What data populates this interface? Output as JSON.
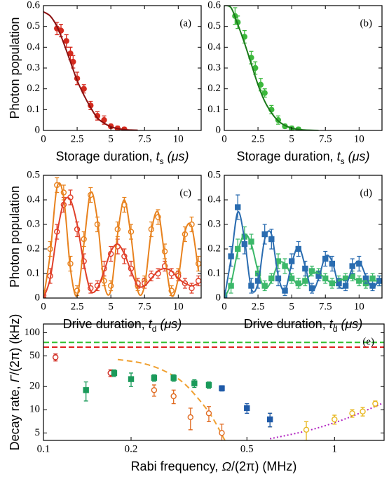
{
  "chart_data": [
    {
      "type": "scatter",
      "label": "(a)",
      "ylabel": "Photon population",
      "xlabel": [
        "Storage duration, ",
        "t",
        "s",
        " (μs)"
      ],
      "xlim": [
        0,
        11.7
      ],
      "ylim": [
        0,
        0.6
      ],
      "xticks": [
        0,
        2.5,
        5,
        7.5,
        10
      ],
      "yticks": [
        0,
        0.1,
        0.2,
        0.3,
        0.4,
        0.5,
        0.6
      ],
      "series": [
        {
          "color": "#d42a1e",
          "marker": "circle",
          "x": [
            1.0,
            1.3,
            1.7,
            2.0,
            2.2,
            2.5,
            3.0,
            3.5,
            4.0,
            4.5,
            5.0,
            5.5,
            6.0
          ],
          "values": [
            0.49,
            0.48,
            0.43,
            0.37,
            0.33,
            0.25,
            0.2,
            0.12,
            0.07,
            0.05,
            0.02,
            0.01,
            0.005
          ],
          "errors": [
            0.03,
            0.03,
            0.03,
            0.03,
            0.03,
            0.03,
            0.02,
            0.02,
            0.02,
            0.02,
            0.01,
            0.01,
            0.01
          ]
        },
        {
          "color": "#8b1010",
          "line": "solid",
          "x": [
            0,
            0.5,
            1,
            1.5,
            2,
            2.5,
            3,
            3.5,
            4,
            4.5,
            5,
            5.5,
            6,
            6.5,
            7
          ],
          "values": [
            0.57,
            0.55,
            0.5,
            0.42,
            0.33,
            0.24,
            0.17,
            0.11,
            0.06,
            0.035,
            0.018,
            0.009,
            0.004,
            0.002,
            0.001
          ]
        }
      ]
    },
    {
      "type": "scatter",
      "label": "(b)",
      "xlabel": [
        "Storage duration, ",
        "t",
        "s",
        " (μs)"
      ],
      "xlim": [
        0,
        11.7
      ],
      "ylim": [
        0,
        0.6
      ],
      "xticks": [
        0,
        2.5,
        5,
        7.5,
        10
      ],
      "yticks": [
        0,
        0.1,
        0.2,
        0.3,
        0.4,
        0.5,
        0.6
      ],
      "series": [
        {
          "color": "#3cb83c",
          "marker": "circle",
          "x": [
            0.8,
            1.0,
            1.5,
            2.0,
            2.3,
            2.7,
            3.0,
            3.5,
            4.0,
            4.5,
            5.0,
            5.5
          ],
          "values": [
            0.55,
            0.52,
            0.45,
            0.35,
            0.3,
            0.22,
            0.18,
            0.1,
            0.05,
            0.02,
            0.01,
            0.005
          ],
          "errors": [
            0.04,
            0.03,
            0.03,
            0.03,
            0.03,
            0.03,
            0.02,
            0.02,
            0.02,
            0.01,
            0.01,
            0.01
          ]
        },
        {
          "color": "#1a7a1a",
          "line": "solid",
          "x": [
            0,
            0.5,
            1,
            1.5,
            2,
            2.5,
            3,
            3.5,
            4,
            4.5,
            5,
            5.5,
            6,
            6.5,
            7
          ],
          "values": [
            0.6,
            0.59,
            0.51,
            0.42,
            0.32,
            0.22,
            0.14,
            0.085,
            0.046,
            0.024,
            0.011,
            0.005,
            0.002,
            0.001,
            0
          ]
        }
      ]
    },
    {
      "type": "scatter",
      "label": "(c)",
      "ylabel": "Photon population",
      "xlabel": [
        "Drive duration,  ",
        "t",
        "d",
        " (μs)"
      ],
      "xlim": [
        0,
        11.7
      ],
      "ylim": [
        0,
        0.5
      ],
      "xticks": [
        0,
        2.5,
        5,
        7.5,
        10
      ],
      "yticks": [
        0,
        0.1,
        0.2,
        0.3,
        0.4,
        0.5
      ],
      "series": [
        {
          "color": "#e8821e",
          "marker": "circle-open",
          "x": [
            0,
            0.5,
            1,
            1.5,
            2,
            2.5,
            3,
            3.5,
            4,
            4.5,
            5,
            5.5,
            6,
            6.5,
            7,
            7.5,
            8,
            8.5,
            9,
            9.5,
            10,
            10.5,
            11,
            11.5
          ],
          "values": [
            0,
            0.2,
            0.46,
            0.43,
            0.14,
            0.03,
            0.24,
            0.42,
            0.3,
            0.07,
            0.05,
            0.28,
            0.38,
            0.27,
            0.05,
            0.07,
            0.28,
            0.33,
            0.19,
            0.03,
            0.1,
            0.26,
            0.3,
            0.14
          ],
          "errors": [
            0.02,
            0.03,
            0.03,
            0.03,
            0.03,
            0.02,
            0.03,
            0.03,
            0.03,
            0.02,
            0.02,
            0.03,
            0.03,
            0.03,
            0.02,
            0.02,
            0.03,
            0.03,
            0.03,
            0.02,
            0.02,
            0.03,
            0.03,
            0.03
          ]
        },
        {
          "color": "#e0402a",
          "marker": "circle-open",
          "x": [
            0,
            0.5,
            1,
            1.5,
            2,
            2.5,
            3,
            3.5,
            4,
            4.5,
            5,
            5.5,
            6,
            6.5,
            7,
            7.5,
            8,
            8.5,
            9,
            9.5,
            10,
            10.5,
            11,
            11.5
          ],
          "values": [
            0.01,
            0.09,
            0.27,
            0.38,
            0.41,
            0.28,
            0.15,
            0.04,
            0.05,
            0.12,
            0.18,
            0.21,
            0.17,
            0.12,
            0.06,
            0.06,
            0.09,
            0.1,
            0.13,
            0.1,
            0.09,
            0.06,
            0.04,
            0.07
          ],
          "errors": [
            0.02,
            0.03,
            0.03,
            0.03,
            0.03,
            0.03,
            0.03,
            0.02,
            0.02,
            0.03,
            0.03,
            0.03,
            0.03,
            0.03,
            0.02,
            0.02,
            0.02,
            0.02,
            0.02,
            0.02,
            0.02,
            0.02,
            0.02,
            0.02
          ]
        },
        {
          "color": "#e8821e",
          "line": "solid",
          "x": [
            0,
            0.5,
            1,
            1.5,
            2,
            2.5,
            3,
            3.5,
            4,
            4.5,
            5,
            5.5,
            6,
            6.5,
            7,
            7.5,
            8,
            8.5,
            9,
            9.5,
            10,
            10.5,
            11,
            11.5
          ],
          "values": [
            0,
            0.18,
            0.45,
            0.41,
            0.12,
            0.01,
            0.22,
            0.43,
            0.32,
            0.06,
            0.03,
            0.26,
            0.4,
            0.25,
            0.03,
            0.05,
            0.27,
            0.35,
            0.17,
            0.01,
            0.08,
            0.27,
            0.29,
            0.11
          ]
        },
        {
          "color": "#e0402a",
          "line": "solid",
          "x": [
            0,
            0.5,
            1,
            1.5,
            2,
            2.5,
            3,
            3.5,
            4,
            4.5,
            5,
            5.5,
            6,
            6.5,
            7,
            7.5,
            8,
            8.5,
            9,
            9.5,
            10,
            10.5,
            11,
            11.5
          ],
          "values": [
            0,
            0.08,
            0.26,
            0.39,
            0.4,
            0.3,
            0.14,
            0.03,
            0.04,
            0.11,
            0.19,
            0.22,
            0.18,
            0.11,
            0.05,
            0.05,
            0.08,
            0.11,
            0.12,
            0.11,
            0.08,
            0.06,
            0.05,
            0.06
          ]
        }
      ]
    },
    {
      "type": "scatter",
      "label": "(d)",
      "xlabel": [
        "Drive duration,  ",
        "t",
        "d",
        " (μs)"
      ],
      "xlim": [
        0,
        11.7
      ],
      "ylim": [
        0,
        0.5
      ],
      "xticks": [
        0,
        2.5,
        5,
        7.5,
        10
      ],
      "yticks": [
        0,
        0.1,
        0.2,
        0.3,
        0.4,
        0.5
      ],
      "series": [
        {
          "color": "#3cb86a",
          "marker": "square",
          "x": [
            0,
            0.5,
            1,
            1.5,
            2,
            2.5,
            3,
            3.5,
            4,
            4.5,
            5,
            5.5,
            6,
            6.5,
            7,
            7.5,
            8,
            8.5,
            9,
            9.5,
            10,
            10.5,
            11,
            11.5
          ],
          "values": [
            0.01,
            0.05,
            0.2,
            0.25,
            0.23,
            0.1,
            0.05,
            0.08,
            0.15,
            0.13,
            0.08,
            0.06,
            0.07,
            0.11,
            0.1,
            0.08,
            0.06,
            0.07,
            0.08,
            0.09,
            0.07,
            0.06,
            0.08,
            0.07
          ],
          "errors": [
            0.02,
            0.03,
            0.04,
            0.04,
            0.03,
            0.03,
            0.02,
            0.02,
            0.03,
            0.03,
            0.02,
            0.02,
            0.02,
            0.02,
            0.02,
            0.02,
            0.02,
            0.02,
            0.02,
            0.02,
            0.02,
            0.02,
            0.02,
            0.02
          ]
        },
        {
          "color": "#2a6cb0",
          "marker": "square",
          "x": [
            0,
            0.5,
            1,
            1.5,
            2,
            2.5,
            3,
            3.5,
            4,
            4.5,
            5,
            5.5,
            6,
            6.5,
            7,
            7.5,
            8,
            8.5,
            9,
            9.5,
            10,
            10.5,
            11,
            11.5
          ],
          "values": [
            0.01,
            0.17,
            0.37,
            0.22,
            0.05,
            0.07,
            0.26,
            0.24,
            0.08,
            0.03,
            0.15,
            0.2,
            0.12,
            0.04,
            0.09,
            0.16,
            0.14,
            0.06,
            0.05,
            0.13,
            0.14,
            0.08,
            0.05,
            0.07
          ],
          "errors": [
            0.02,
            0.04,
            0.05,
            0.04,
            0.03,
            0.03,
            0.04,
            0.04,
            0.03,
            0.02,
            0.03,
            0.03,
            0.03,
            0.02,
            0.02,
            0.03,
            0.03,
            0.02,
            0.02,
            0.03,
            0.03,
            0.02,
            0.02,
            0.02
          ]
        },
        {
          "color": "#3cb86a",
          "line": "solid",
          "x": [
            0,
            0.5,
            1,
            1.5,
            2,
            2.5,
            3,
            3.5,
            4,
            4.5,
            5,
            5.5,
            6,
            6.5,
            7,
            7.5,
            8,
            8.5,
            9,
            9.5,
            10,
            10.5,
            11,
            11.5
          ],
          "values": [
            0,
            0.06,
            0.19,
            0.26,
            0.22,
            0.11,
            0.04,
            0.07,
            0.14,
            0.14,
            0.09,
            0.05,
            0.07,
            0.1,
            0.1,
            0.08,
            0.06,
            0.07,
            0.08,
            0.08,
            0.07,
            0.07,
            0.07,
            0.07
          ]
        },
        {
          "color": "#2a6cb0",
          "line": "solid",
          "x": [
            0,
            0.5,
            1,
            1.5,
            2,
            2.5,
            3,
            3.5,
            4,
            4.5,
            5,
            5.5,
            6,
            6.5,
            7,
            7.5,
            8,
            8.5,
            9,
            9.5,
            10,
            10.5,
            11,
            11.5
          ],
          "values": [
            0,
            0.16,
            0.35,
            0.24,
            0.04,
            0.06,
            0.24,
            0.26,
            0.09,
            0.03,
            0.14,
            0.21,
            0.13,
            0.03,
            0.08,
            0.17,
            0.15,
            0.05,
            0.05,
            0.12,
            0.15,
            0.09,
            0.04,
            0.08
          ]
        }
      ]
    },
    {
      "type": "scatter",
      "label": "(e)",
      "ylabel": [
        "Decay rate, ",
        "Γ",
        "/(2π) (kHz)"
      ],
      "xlabel": [
        "Rabi frequency, ",
        "Ω",
        "/(2π)  (MHz)"
      ],
      "xlog": true,
      "ylog": true,
      "xlim": [
        0.1,
        1.48
      ],
      "ylim": [
        4,
        130
      ],
      "xticks": [
        0.1,
        0.2,
        0.5,
        1
      ],
      "yticks": [
        5,
        10,
        20,
        50,
        100
      ],
      "hlines": [
        {
          "value": 75,
          "color": "#30c030"
        },
        {
          "value": 65,
          "color": "#e02020"
        }
      ],
      "series": [
        {
          "color": "#f0a030",
          "line": "dashed",
          "x": [
            0.18,
            0.22,
            0.26,
            0.3,
            0.34,
            0.38,
            0.42
          ],
          "values": [
            45,
            40,
            32,
            23,
            14,
            8,
            4
          ]
        },
        {
          "color": "#b020c0",
          "line": "dotted",
          "x": [
            0.6,
            0.8,
            1.0,
            1.2,
            1.45
          ],
          "values": [
            4.2,
            5.3,
            6.8,
            8.8,
            12
          ]
        },
        {
          "color": "#d0281e",
          "marker": "circle-open",
          "x": [
            0.11,
            0.17
          ],
          "values": [
            48,
            30
          ],
          "errors": [
            5,
            3
          ]
        },
        {
          "color": "#e06a20",
          "marker": "circle-open",
          "x": [
            0.24,
            0.28,
            0.32,
            0.37,
            0.41
          ],
          "values": [
            18,
            15,
            8,
            9,
            5
          ],
          "errors": [
            3,
            3,
            2.5,
            2,
            1.5
          ]
        },
        {
          "color": "#e8b822",
          "marker": "circle-open",
          "x": [
            0.6,
            0.8,
            1.0,
            1.15,
            1.25,
            1.38
          ],
          "values": [
            7.5,
            5.5,
            7.5,
            9,
            9.5,
            12
          ],
          "errors": [
            1.5,
            1.5,
            1,
            1,
            1.2,
            1
          ]
        },
        {
          "color": "#1a9a5a",
          "marker": "square",
          "x": [
            0.14,
            0.175,
            0.2,
            0.24,
            0.28,
            0.33,
            0.37
          ],
          "values": [
            18,
            30,
            25,
            26,
            26,
            22,
            21
          ],
          "errors": [
            5,
            3,
            5,
            2.5,
            2.5,
            2.5,
            2
          ]
        },
        {
          "color": "#1f5aa8",
          "marker": "square",
          "x": [
            0.41,
            0.5,
            0.6
          ],
          "values": [
            19,
            10.5,
            7.5
          ],
          "errors": [
            1.5,
            1.5,
            1.5
          ]
        }
      ]
    }
  ]
}
